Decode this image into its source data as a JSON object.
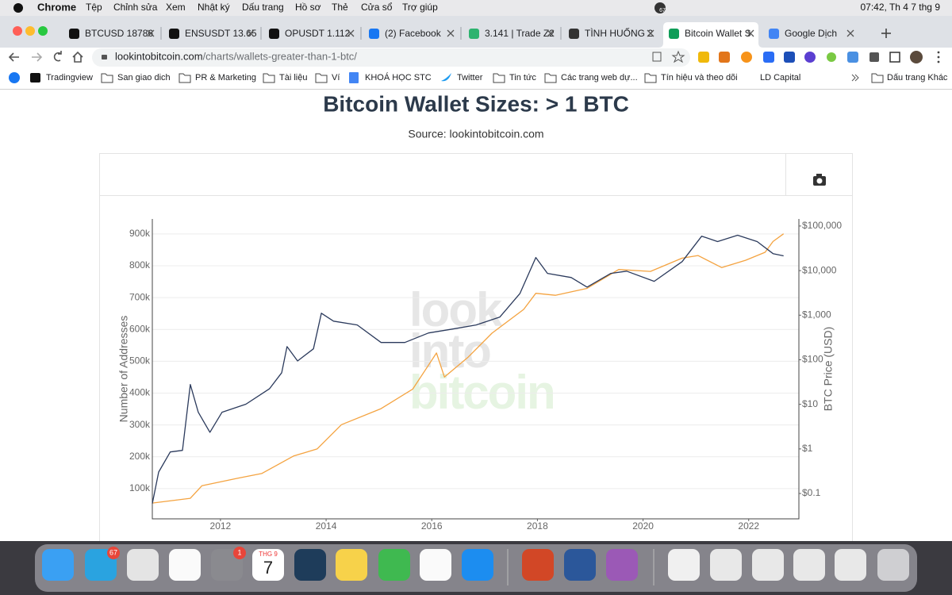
{
  "menubar": {
    "app": "Chrome",
    "menus": [
      "Tệp",
      "Chỉnh sửa",
      "Xem",
      "Nhật ký",
      "Dấu trang",
      "Hồ sơ",
      "Thẻ",
      "Cửa sổ",
      "Trợ giúp"
    ],
    "status_badge": "67",
    "clock": "07:42, Th 4 7 thg 9"
  },
  "tabs": [
    "BTCUSD 18786",
    "ENSUSDT 13.65",
    "OPUSDT 1.112",
    "(2) Facebook",
    "3.141 | Trade Z2",
    "TÌNH HUỐNG 2",
    "Bitcoin Wallet S",
    "Google Dịch"
  ],
  "active_tab": 6,
  "address": {
    "host": "lookintobitcoin.com",
    "path": "/charts/wallets-greater-than-1-btc/"
  },
  "bookmarks": [
    "Tradingview",
    "San giao dich",
    "PR & Marketing",
    "Tài liệu",
    "Ví",
    "KHOÁ HỌC STC",
    "Twitter",
    "Tin tức",
    "Các trang web dự...",
    "Tín hiệu và theo dõi",
    "LD Capital"
  ],
  "bookmarks_more": "Dấu trang Khác",
  "chart_data": {
    "type": "line",
    "title": "Bitcoin Wallet Sizes: > 1 BTC",
    "subtitle": "Source: lookintobitcoin.com",
    "watermark": [
      "look",
      "into",
      "bitcoin"
    ],
    "y_label": "Number of Addresses",
    "y2_label": "BTC Price (USD)",
    "xlim": [
      2010.71,
      2022.95
    ],
    "xticks": [
      2012,
      2014,
      2016,
      2018,
      2020,
      2022
    ],
    "ylim": [
      5000,
      947000
    ],
    "yticks": [
      {
        "value": 100000,
        "label": "100k"
      },
      {
        "value": 200000,
        "label": "200k"
      },
      {
        "value": 300000,
        "label": "300k"
      },
      {
        "value": 400000,
        "label": "400k"
      },
      {
        "value": 500000,
        "label": "500k"
      },
      {
        "value": 600000,
        "label": "600k"
      },
      {
        "value": 700000,
        "label": "700k"
      },
      {
        "value": 800000,
        "label": "800k"
      },
      {
        "value": 900000,
        "label": "900k"
      }
    ],
    "y2lim": [
      0.027,
      144000
    ],
    "y2_log": true,
    "y2ticks": [
      {
        "value": 0.1,
        "label": "$0.1"
      },
      {
        "value": 1,
        "label": "$1"
      },
      {
        "value": 10,
        "label": "$10"
      },
      {
        "value": 100,
        "label": "$100"
      },
      {
        "value": 1000,
        "label": "$1,000"
      },
      {
        "value": 10000,
        "label": "$10,000"
      },
      {
        "value": 100000,
        "label": "$100,000"
      }
    ],
    "grid": true,
    "series": [
      {
        "color": "#2b3a5c",
        "x": [
          2010.71,
          2010.83,
          2011.05,
          2011.28,
          2011.43,
          2011.58,
          2011.8,
          2012.03,
          2012.48,
          2012.93,
          2013.16,
          2013.26,
          2013.46,
          2013.76,
          2013.91,
          2014.14,
          2014.59,
          2015.04,
          2015.49,
          2015.94,
          2016.39,
          2016.84,
          2017.29,
          2017.67,
          2017.97,
          2018.19,
          2018.64,
          2018.94,
          2019.39,
          2019.69,
          2020.21,
          2020.74,
          2021.11,
          2021.41,
          2021.79,
          2022.16,
          2022.46,
          2022.66
        ],
        "values": [
          53000,
          152000,
          215000,
          220000,
          427000,
          340000,
          277000,
          340000,
          365000,
          414000,
          464000,
          546000,
          501000,
          539000,
          651000,
          626000,
          614000,
          559000,
          559000,
          589000,
          601000,
          614000,
          639000,
          713000,
          826000,
          776000,
          763000,
          733000,
          776000,
          783000,
          751000,
          813000,
          893000,
          876000,
          896000,
          876000,
          838000,
          831000
        ]
      },
      {
        "color": "#f4a340",
        "axis": "y2",
        "x": [
          2010.71,
          2011.43,
          2011.65,
          2012.33,
          2012.78,
          2013.38,
          2013.83,
          2014.29,
          2015.04,
          2015.64,
          2015.94,
          2016.09,
          2016.24,
          2016.69,
          2017.14,
          2017.74,
          2017.97,
          2018.34,
          2018.94,
          2019.54,
          2020.14,
          2020.74,
          2021.04,
          2021.49,
          2021.94,
          2022.31,
          2022.46,
          2022.66
        ],
        "values": [
          0.061,
          0.078,
          0.15,
          0.22,
          0.28,
          0.69,
          1.0,
          3.5,
          8.0,
          22,
          76,
          142,
          41,
          115,
          394,
          1350,
          3100,
          2800,
          4000,
          10600,
          9600,
          19000,
          21800,
          11700,
          17000,
          25800,
          45000,
          67000
        ]
      }
    ]
  },
  "dock": {
    "telegram_badge": "67",
    "settings_badge": "1",
    "calendar_month": "THG 9",
    "calendar_day": "7"
  }
}
